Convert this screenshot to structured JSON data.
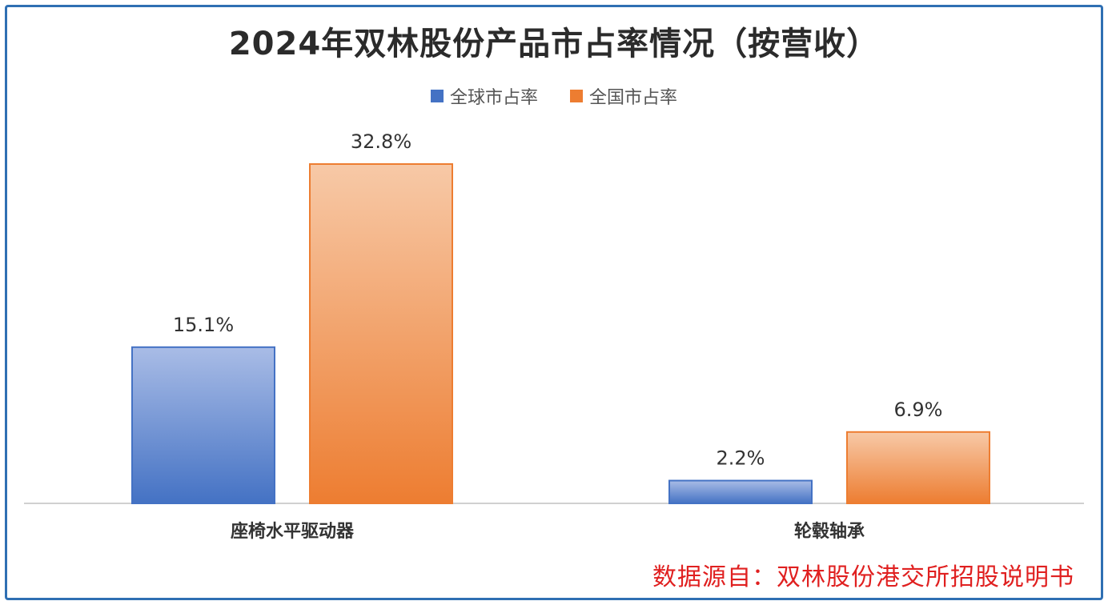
{
  "chart_data": {
    "type": "bar",
    "title": "2024年双林股份产品市占率情况（按营收）",
    "categories": [
      "座椅水平驱动器",
      "轮毂轴承"
    ],
    "series": [
      {
        "name": "全球市占率",
        "values": [
          15.1,
          2.2
        ],
        "labels": [
          "15.1%",
          "2.2%"
        ],
        "color": "#4472c4",
        "color_light": "#a9bce6"
      },
      {
        "name": "全国市占率",
        "values": [
          32.8,
          6.9
        ],
        "labels": [
          "32.8%",
          "6.9%"
        ],
        "color": "#ed7d31",
        "color_light": "#f7c9a7"
      }
    ],
    "ylim": [
      0,
      32.8
    ],
    "legend_position": "top-center",
    "grid": false,
    "source_note": "数据源自：双林股份港交所招股说明书"
  }
}
